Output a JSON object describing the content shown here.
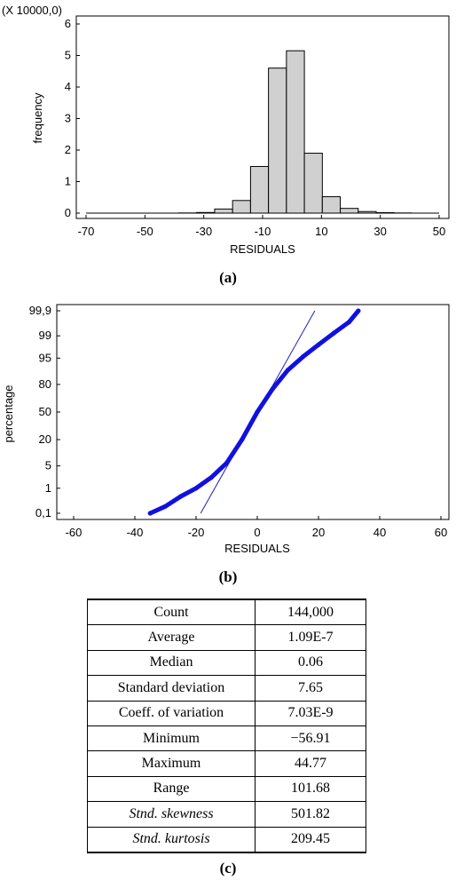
{
  "chart_data": [
    {
      "type": "bar",
      "panel_label": "(a)",
      "multiplier_label": "(X 10000,0)",
      "ylabel": "frequency",
      "xlabel": "RESIDUALS",
      "xlim": [
        -75,
        55
      ],
      "ylim": [
        0,
        6
      ],
      "xticks": [
        "-70",
        "-50",
        "-30",
        "-10",
        "10",
        "30",
        "50"
      ],
      "yticks": [
        "0",
        "1",
        "2",
        "3",
        "4",
        "5",
        "6"
      ],
      "bin_width": 6.1,
      "bin_starts": [
        -38.5,
        -32.4,
        -26.3,
        -20.2,
        -14.1,
        -8.0,
        -1.9,
        4.2,
        10.3,
        16.4,
        22.5,
        28.6,
        34.7
      ],
      "values": [
        0.005,
        0.02,
        0.13,
        0.4,
        1.48,
        4.6,
        5.15,
        1.9,
        0.52,
        0.15,
        0.05,
        0.015,
        0.005
      ],
      "fill_color": "#d0d0d0"
    },
    {
      "type": "scatter",
      "panel_label": "(b)",
      "ylabel": "percentage",
      "xlabel": "RESIDUALS",
      "xlim": [
        -65,
        65
      ],
      "xticks": [
        "-60",
        "-40",
        "-20",
        "0",
        "20",
        "40",
        "60"
      ],
      "ylim_percent": [
        0.1,
        99.9
      ],
      "yticks": [
        "0,1",
        "1",
        "5",
        "20",
        "50",
        "80",
        "95",
        "99",
        "99,9"
      ],
      "ytick_values": [
        0.1,
        1,
        5,
        20,
        50,
        80,
        95,
        99,
        99.9
      ],
      "point_color": "#1010e0",
      "line_color": "#2020c0",
      "points": [
        {
          "x": -35,
          "y": 0.1
        },
        {
          "x": -30,
          "y": 0.2
        },
        {
          "x": -25,
          "y": 0.5
        },
        {
          "x": -20,
          "y": 1
        },
        {
          "x": -15,
          "y": 2.3
        },
        {
          "x": -10,
          "y": 6
        },
        {
          "x": -5,
          "y": 20
        },
        {
          "x": 0,
          "y": 50
        },
        {
          "x": 5,
          "y": 76
        },
        {
          "x": 10,
          "y": 90
        },
        {
          "x": 15,
          "y": 95.5
        },
        {
          "x": 20,
          "y": 98
        },
        {
          "x": 25,
          "y": 99.2
        },
        {
          "x": 30,
          "y": 99.7
        },
        {
          "x": 33,
          "y": 99.9
        }
      ],
      "reference_line": [
        {
          "x": -18.5,
          "y": 0.1
        },
        {
          "x": 18.8,
          "y": 99.9
        }
      ]
    }
  ],
  "table": {
    "panel_label": "(c)",
    "rows": [
      {
        "stat": "Count",
        "value": "144,000",
        "italic": false
      },
      {
        "stat": "Average",
        "value": "1.09E-7",
        "italic": false
      },
      {
        "stat": "Median",
        "value": "0.06",
        "italic": false
      },
      {
        "stat": "Standard deviation",
        "value": "7.65",
        "italic": false
      },
      {
        "stat": "Coeff. of variation",
        "value": "7.03E-9",
        "italic": false
      },
      {
        "stat": "Minimum",
        "value": "−56.91",
        "italic": false
      },
      {
        "stat": "Maximum",
        "value": "44.77",
        "italic": false
      },
      {
        "stat": "Range",
        "value": "101.68",
        "italic": false
      },
      {
        "stat": "Stnd. skewness",
        "value": "501.82",
        "italic": true
      },
      {
        "stat": "Stnd. kurtosis",
        "value": "209.45",
        "italic": true
      }
    ]
  }
}
